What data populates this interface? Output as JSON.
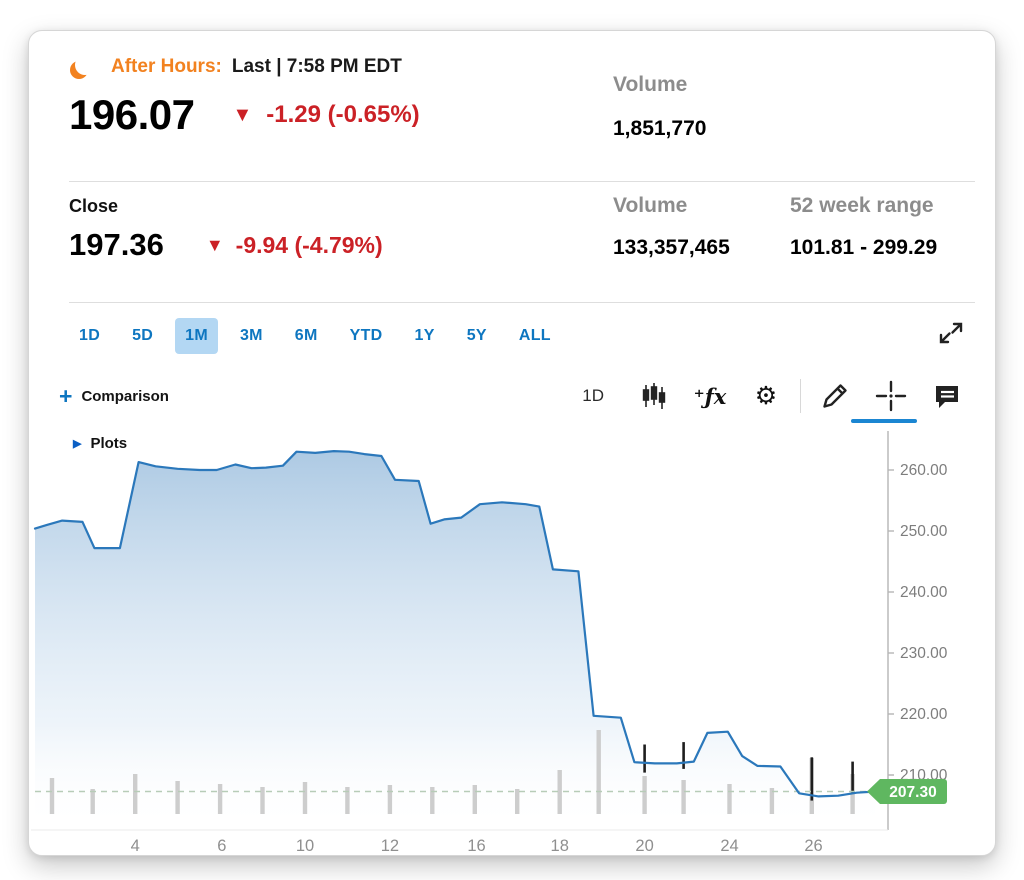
{
  "after_hours": {
    "label": "After Hours:",
    "sub_label": "Last | 7:58 PM EDT",
    "price": "196.07",
    "change": "-1.29 (-0.65%)",
    "volume_label": "Volume",
    "volume_value": "1,851,770"
  },
  "close": {
    "label": "Close",
    "price": "197.36",
    "change": "-9.94 (-4.79%)",
    "volume_label": "Volume",
    "volume_value": "133,357,465",
    "range_label": "52 week range",
    "range_value": "101.81 - 299.29"
  },
  "range_tabs": {
    "items": [
      "1D",
      "5D",
      "1M",
      "3M",
      "6M",
      "YTD",
      "1Y",
      "5Y",
      "ALL"
    ],
    "active": "1M"
  },
  "toolbar": {
    "comparison_label": "Comparison",
    "interval_label": "1D",
    "plots_label": "Plots"
  },
  "icons": {
    "moon": "crescent-moon",
    "triangle_down": "▼",
    "plots_arrow": "▶",
    "gear": "⚙",
    "fx": "⁺ƒx",
    "plus": "+"
  },
  "colors": {
    "orange": "#f28220",
    "negative_red": "#cb2126",
    "tab_blue": "#0e76c0",
    "tab_active_bg": "#b3d7f3",
    "crosshair_underline": "#1b86d2"
  },
  "chart_data": {
    "type": "area",
    "title": "",
    "xlabel": "",
    "ylabel": "",
    "ylim": [
      201.0,
      267.5
    ],
    "grid": false,
    "legend": false,
    "last_price": 207.3,
    "last_price_label": "207.30",
    "colors": {
      "line": "#2b78bb",
      "volume": "#cdcdcd",
      "mark": "#1e1e1e",
      "dash": "#b7ccb7",
      "axis_text": "#7d7d7d",
      "axis_text_x": "#8f8f8f",
      "dot": "#2a9fd8",
      "badge": "#5fb760"
    },
    "y_ticks": [
      {
        "value": 210,
        "label": "210.00"
      },
      {
        "value": 220,
        "label": "220.00"
      },
      {
        "value": 230,
        "label": "230.00"
      },
      {
        "value": 240,
        "label": "240.00"
      },
      {
        "value": 250,
        "label": "250.00"
      },
      {
        "value": 260,
        "label": "260.00"
      }
    ],
    "x_ticks": [
      {
        "f": 0.118,
        "label": "4"
      },
      {
        "f": 0.22,
        "label": "6"
      },
      {
        "f": 0.318,
        "label": "10"
      },
      {
        "f": 0.418,
        "label": "12"
      },
      {
        "f": 0.52,
        "label": "16"
      },
      {
        "f": 0.618,
        "label": "18"
      },
      {
        "f": 0.718,
        "label": "20"
      },
      {
        "f": 0.818,
        "label": "24"
      },
      {
        "f": 0.917,
        "label": "26"
      }
    ],
    "series": [
      {
        "name": "price",
        "points": [
          [
            0.0,
            250.4
          ],
          [
            0.014,
            251.0
          ],
          [
            0.032,
            251.7
          ],
          [
            0.056,
            251.5
          ],
          [
            0.07,
            247.2
          ],
          [
            0.1,
            247.2
          ],
          [
            0.122,
            261.3
          ],
          [
            0.142,
            260.6
          ],
          [
            0.168,
            260.2
          ],
          [
            0.194,
            260.0
          ],
          [
            0.214,
            260.0
          ],
          [
            0.236,
            260.9
          ],
          [
            0.255,
            260.3
          ],
          [
            0.272,
            260.4
          ],
          [
            0.292,
            260.7
          ],
          [
            0.308,
            263.0
          ],
          [
            0.33,
            262.8
          ],
          [
            0.352,
            263.1
          ],
          [
            0.37,
            263.0
          ],
          [
            0.388,
            262.6
          ],
          [
            0.408,
            262.3
          ],
          [
            0.424,
            258.4
          ],
          [
            0.452,
            258.2
          ],
          [
            0.466,
            251.2
          ],
          [
            0.482,
            251.9
          ],
          [
            0.502,
            252.2
          ],
          [
            0.524,
            254.4
          ],
          [
            0.55,
            254.7
          ],
          [
            0.578,
            254.4
          ],
          [
            0.594,
            254.0
          ],
          [
            0.61,
            243.7
          ],
          [
            0.64,
            243.4
          ],
          [
            0.658,
            219.7
          ],
          [
            0.69,
            219.4
          ],
          [
            0.706,
            212.1
          ],
          [
            0.73,
            211.9
          ],
          [
            0.756,
            211.9
          ],
          [
            0.776,
            212.2
          ],
          [
            0.792,
            216.9
          ],
          [
            0.816,
            217.1
          ],
          [
            0.833,
            213.1
          ],
          [
            0.851,
            211.5
          ],
          [
            0.878,
            211.4
          ],
          [
            0.9,
            207.0
          ],
          [
            0.923,
            206.5
          ],
          [
            0.946,
            206.6
          ],
          [
            0.968,
            207.1
          ],
          [
            0.99,
            207.3
          ]
        ]
      }
    ],
    "volume_bars_rel": [
      [
        0.02,
        36
      ],
      [
        0.068,
        25
      ],
      [
        0.118,
        40
      ],
      [
        0.168,
        33
      ],
      [
        0.218,
        30
      ],
      [
        0.268,
        27
      ],
      [
        0.318,
        32
      ],
      [
        0.368,
        27
      ],
      [
        0.418,
        29
      ],
      [
        0.468,
        27
      ],
      [
        0.518,
        29
      ],
      [
        0.568,
        25
      ],
      [
        0.618,
        44
      ],
      [
        0.664,
        84
      ],
      [
        0.718,
        38
      ],
      [
        0.764,
        34
      ],
      [
        0.818,
        30
      ],
      [
        0.868,
        26
      ],
      [
        0.915,
        56
      ],
      [
        0.963,
        40
      ]
    ],
    "range_marks": [
      [
        0.718,
        215.0,
        210.4
      ],
      [
        0.764,
        215.4,
        211.0
      ],
      [
        0.915,
        212.9,
        205.8
      ],
      [
        0.963,
        212.2,
        207.0
      ]
    ]
  }
}
